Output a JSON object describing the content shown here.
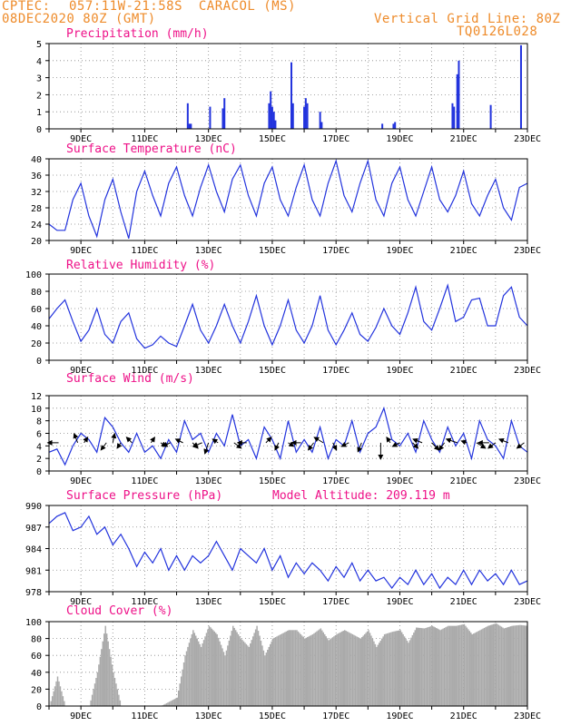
{
  "header": {
    "source": "CPTEC:",
    "location": "057:11W-21:58S  CARACOL (MS)",
    "run": "08DEC2020 80Z (GMT)",
    "grid_note": "Vertical Grid Line: 80Z",
    "code": "TQ0126L028"
  },
  "colors": {
    "series": "#2233dd",
    "cloud": "#aaaaaa",
    "title": "#ee1188",
    "header": "#ee8b2a",
    "arrow": "#000000"
  },
  "x_axis": {
    "start_day": 8.0,
    "end_day": 23.0,
    "tick_labels": [
      {
        "day": 9,
        "label": "9DEC"
      },
      {
        "day": 11,
        "label": "11DEC"
      },
      {
        "day": 13,
        "label": "13DEC"
      },
      {
        "day": 15,
        "label": "15DEC"
      },
      {
        "day": 17,
        "label": "17DEC"
      },
      {
        "day": 19,
        "label": "19DEC"
      },
      {
        "day": 21,
        "label": "21DEC"
      },
      {
        "day": 23,
        "label": "23DEC"
      }
    ]
  },
  "chart_data": [
    {
      "id": "precipitation",
      "type": "bar",
      "title": "Precipitation (mm/h)",
      "ylim": [
        0,
        5
      ],
      "yticks": [
        "0",
        "1",
        "2",
        "3",
        "4",
        "5"
      ],
      "points": [
        {
          "day": 12.35,
          "value": 1.5
        },
        {
          "day": 12.4,
          "value": 0.3
        },
        {
          "day": 12.45,
          "value": 0.3
        },
        {
          "day": 13.05,
          "value": 1.3
        },
        {
          "day": 13.45,
          "value": 1.2
        },
        {
          "day": 13.5,
          "value": 1.8
        },
        {
          "day": 14.9,
          "value": 1.5
        },
        {
          "day": 14.95,
          "value": 2.2
        },
        {
          "day": 15.0,
          "value": 1.3
        },
        {
          "day": 15.05,
          "value": 1.0
        },
        {
          "day": 15.1,
          "value": 0.5
        },
        {
          "day": 15.6,
          "value": 3.9
        },
        {
          "day": 15.65,
          "value": 1.5
        },
        {
          "day": 16.0,
          "value": 1.3
        },
        {
          "day": 16.05,
          "value": 1.8
        },
        {
          "day": 16.1,
          "value": 1.5
        },
        {
          "day": 16.5,
          "value": 1.0
        },
        {
          "day": 16.55,
          "value": 0.4
        },
        {
          "day": 18.45,
          "value": 0.3
        },
        {
          "day": 18.8,
          "value": 0.3
        },
        {
          "day": 18.85,
          "value": 0.4
        },
        {
          "day": 20.65,
          "value": 1.5
        },
        {
          "day": 20.7,
          "value": 1.3
        },
        {
          "day": 20.8,
          "value": 3.2
        },
        {
          "day": 20.85,
          "value": 4.0
        },
        {
          "day": 21.85,
          "value": 1.4
        },
        {
          "day": 22.8,
          "value": 4.9
        }
      ]
    },
    {
      "id": "temperature",
      "type": "line",
      "title": "Surface Temperature (nC)",
      "ylim": [
        20,
        40
      ],
      "yticks": [
        "20",
        "24",
        "28",
        "32",
        "36",
        "40"
      ],
      "x": [
        8.0,
        8.25,
        8.5,
        8.75,
        9.0,
        9.25,
        9.5,
        9.75,
        10.0,
        10.25,
        10.5,
        10.75,
        11.0,
        11.25,
        11.5,
        11.75,
        12.0,
        12.25,
        12.5,
        12.75,
        13.0,
        13.25,
        13.5,
        13.75,
        14.0,
        14.25,
        14.5,
        14.75,
        15.0,
        15.25,
        15.5,
        15.75,
        16.0,
        16.25,
        16.5,
        16.75,
        17.0,
        17.25,
        17.5,
        17.75,
        18.0,
        18.25,
        18.5,
        18.75,
        19.0,
        19.25,
        19.5,
        19.75,
        20.0,
        20.25,
        20.5,
        20.75,
        21.0,
        21.25,
        21.5,
        21.75,
        22.0,
        22.25,
        22.5,
        22.75,
        23.0
      ],
      "values": [
        24,
        22.5,
        22.5,
        30,
        34,
        26,
        21,
        30,
        35,
        27,
        20.5,
        32,
        37,
        31,
        26,
        34,
        38,
        31,
        26,
        33,
        38.5,
        32,
        27,
        35,
        38.5,
        31,
        26,
        34,
        38,
        30,
        26,
        33,
        38.5,
        30,
        26,
        34,
        39.5,
        31,
        27,
        34,
        39.5,
        30,
        26,
        34,
        38,
        30,
        26,
        32,
        38,
        30,
        27,
        31,
        37,
        29,
        26,
        31,
        35,
        28,
        25,
        33,
        34
      ]
    },
    {
      "id": "humidity",
      "type": "line",
      "title": "Relative Humidity (%)",
      "ylim": [
        0,
        100
      ],
      "yticks": [
        "0",
        "20",
        "40",
        "60",
        "80",
        "100"
      ],
      "x": [
        8.0,
        8.25,
        8.5,
        8.75,
        9.0,
        9.25,
        9.5,
        9.75,
        10.0,
        10.25,
        10.5,
        10.75,
        11.0,
        11.25,
        11.5,
        11.75,
        12.0,
        12.25,
        12.5,
        12.75,
        13.0,
        13.25,
        13.5,
        13.75,
        14.0,
        14.25,
        14.5,
        14.75,
        15.0,
        15.25,
        15.5,
        15.75,
        16.0,
        16.25,
        16.5,
        16.75,
        17.0,
        17.25,
        17.5,
        17.75,
        18.0,
        18.25,
        18.5,
        18.75,
        19.0,
        19.25,
        19.5,
        19.75,
        20.0,
        20.25,
        20.5,
        20.75,
        21.0,
        21.25,
        21.5,
        21.75,
        22.0,
        22.25,
        22.5,
        22.75,
        23.0
      ],
      "values": [
        48,
        60,
        70,
        45,
        22,
        35,
        60,
        30,
        20,
        45,
        55,
        25,
        14,
        18,
        28,
        20,
        16,
        40,
        65,
        35,
        20,
        40,
        65,
        40,
        20,
        45,
        75,
        40,
        18,
        40,
        70,
        35,
        20,
        40,
        75,
        35,
        18,
        35,
        55,
        30,
        22,
        38,
        60,
        40,
        30,
        55,
        85,
        45,
        35,
        60,
        87,
        45,
        50,
        70,
        72,
        40,
        40,
        75,
        85,
        50,
        40
      ]
    },
    {
      "id": "wind",
      "type": "line",
      "title": "Surface Wind (m/s)",
      "ylim": [
        0,
        12
      ],
      "yticks": [
        "0",
        "2",
        "4",
        "6",
        "8",
        "10",
        "12"
      ],
      "x": [
        8.0,
        8.25,
        8.5,
        8.75,
        9.0,
        9.25,
        9.5,
        9.75,
        10.0,
        10.25,
        10.5,
        10.75,
        11.0,
        11.25,
        11.5,
        11.75,
        12.0,
        12.25,
        12.5,
        12.75,
        13.0,
        13.25,
        13.5,
        13.75,
        14.0,
        14.25,
        14.5,
        14.75,
        15.0,
        15.25,
        15.5,
        15.75,
        16.0,
        16.25,
        16.5,
        16.75,
        17.0,
        17.25,
        17.5,
        17.75,
        18.0,
        18.25,
        18.5,
        18.75,
        19.0,
        19.25,
        19.5,
        19.75,
        20.0,
        20.25,
        20.5,
        20.75,
        21.0,
        21.25,
        21.5,
        21.75,
        22.0,
        22.25,
        22.5,
        22.75,
        23.0
      ],
      "values": [
        3,
        3.5,
        1,
        4,
        6,
        5,
        3,
        8.5,
        7,
        4.5,
        3,
        6,
        3,
        4,
        2,
        5,
        3,
        8,
        5,
        6,
        3,
        6,
        4,
        9,
        4,
        5,
        2,
        7,
        5,
        2,
        8,
        3,
        5,
        3,
        7,
        2,
        5,
        4,
        8,
        3,
        6,
        7,
        10,
        5,
        4,
        6,
        3,
        8,
        5,
        3,
        7,
        4,
        6,
        2,
        8,
        5,
        4,
        2,
        8,
        4,
        3
      ]
    },
    {
      "id": "pressure",
      "type": "line",
      "title": "Surface Pressure (hPa)",
      "subtitle": "Model Altitude: 209.119 m",
      "ylim": [
        978,
        990
      ],
      "yticks": [
        "978",
        "981",
        "984",
        "987",
        "990"
      ],
      "x": [
        8.0,
        8.25,
        8.5,
        8.75,
        9.0,
        9.25,
        9.5,
        9.75,
        10.0,
        10.25,
        10.5,
        10.75,
        11.0,
        11.25,
        11.5,
        11.75,
        12.0,
        12.25,
        12.5,
        12.75,
        13.0,
        13.25,
        13.5,
        13.75,
        14.0,
        14.25,
        14.5,
        14.75,
        15.0,
        15.25,
        15.5,
        15.75,
        16.0,
        16.25,
        16.5,
        16.75,
        17.0,
        17.25,
        17.5,
        17.75,
        18.0,
        18.25,
        18.5,
        18.75,
        19.0,
        19.25,
        19.5,
        19.75,
        20.0,
        20.25,
        20.5,
        20.75,
        21.0,
        21.25,
        21.5,
        21.75,
        22.0,
        22.25,
        22.5,
        22.75,
        23.0
      ],
      "values": [
        987.5,
        988.5,
        989,
        986.5,
        987,
        988.5,
        986,
        987,
        984.5,
        986,
        984,
        981.5,
        983.5,
        982,
        984,
        981,
        983,
        981,
        983,
        982,
        983,
        985,
        983,
        981,
        984,
        983,
        982,
        984,
        981,
        983,
        980,
        982,
        980.5,
        982,
        981,
        979.5,
        981.5,
        980,
        982,
        979.5,
        981,
        979.5,
        980,
        978.5,
        980,
        979,
        981,
        979,
        980.5,
        978.5,
        980,
        979,
        981,
        979,
        981,
        979.5,
        980.5,
        979,
        981,
        979,
        979.5
      ]
    },
    {
      "id": "cloud_cover",
      "type": "area",
      "title": "Cloud Cover (%)",
      "ylim": [
        0,
        100
      ],
      "yticks": [
        "0",
        "20",
        "40",
        "60",
        "80",
        "100"
      ],
      "x": [
        8.0,
        8.25,
        8.5,
        8.75,
        9.0,
        9.25,
        9.5,
        9.75,
        10.0,
        10.25,
        10.5,
        10.75,
        11.0,
        11.25,
        11.5,
        11.75,
        12.0,
        12.25,
        12.5,
        12.75,
        13.0,
        13.25,
        13.5,
        13.75,
        14.0,
        14.25,
        14.5,
        14.75,
        15.0,
        15.25,
        15.5,
        15.75,
        16.0,
        16.25,
        16.5,
        16.75,
        17.0,
        17.25,
        17.5,
        17.75,
        18.0,
        18.25,
        18.5,
        18.75,
        19.0,
        19.25,
        19.5,
        19.75,
        20.0,
        20.25,
        20.5,
        20.75,
        21.0,
        21.25,
        21.5,
        21.75,
        22.0,
        22.25,
        22.5,
        22.75,
        23.0
      ],
      "values": [
        0,
        35,
        0,
        0,
        0,
        0,
        40,
        95,
        40,
        0,
        0,
        0,
        0,
        0,
        0,
        5,
        10,
        60,
        90,
        70,
        95,
        85,
        60,
        95,
        80,
        70,
        95,
        60,
        80,
        85,
        90,
        90,
        80,
        85,
        92,
        78,
        85,
        90,
        85,
        80,
        90,
        70,
        85,
        88,
        90,
        75,
        93,
        92,
        95,
        90,
        95,
        95,
        97,
        85,
        90,
        95,
        98,
        92,
        95,
        96,
        95
      ]
    }
  ],
  "wind_vectors": [
    {
      "day": 8.3,
      "u": -6,
      "v": 0
    },
    {
      "day": 8.9,
      "u": -2,
      "v": 5
    },
    {
      "day": 9.1,
      "u": 2,
      "v": 3
    },
    {
      "day": 9.8,
      "u": -3,
      "v": -4
    },
    {
      "day": 10.0,
      "u": 1,
      "v": 5
    },
    {
      "day": 10.25,
      "u": -2,
      "v": -3
    },
    {
      "day": 10.6,
      "u": -3,
      "v": 3
    },
    {
      "day": 11.2,
      "u": 2,
      "v": 3
    },
    {
      "day": 11.5,
      "u": 3,
      "v": -2
    },
    {
      "day": 11.8,
      "u": -4,
      "v": -2
    },
    {
      "day": 12.2,
      "u": -4,
      "v": 2
    },
    {
      "day": 12.5,
      "u": 3,
      "v": -3
    },
    {
      "day": 12.8,
      "u": -5,
      "v": -2
    },
    {
      "day": 13.0,
      "u": -2,
      "v": -6
    },
    {
      "day": 13.3,
      "u": -3,
      "v": 2
    },
    {
      "day": 13.8,
      "u": 4,
      "v": -3
    },
    {
      "day": 14.2,
      "u": -5,
      "v": 0
    },
    {
      "day": 14.8,
      "u": 3,
      "v": 3
    },
    {
      "day": 15.2,
      "u": -2,
      "v": -4
    },
    {
      "day": 15.5,
      "u": 3,
      "v": -2
    },
    {
      "day": 15.9,
      "u": -5,
      "v": 0
    },
    {
      "day": 16.3,
      "u": -3,
      "v": -4
    },
    {
      "day": 16.6,
      "u": -5,
      "v": 3
    },
    {
      "day": 16.9,
      "u": 2,
      "v": -4
    },
    {
      "day": 17.4,
      "u": -4,
      "v": -2
    },
    {
      "day": 17.8,
      "u": -2,
      "v": -5
    },
    {
      "day": 18.4,
      "u": 0,
      "v": -9
    },
    {
      "day": 18.7,
      "u": -2,
      "v": 3
    },
    {
      "day": 19.0,
      "u": -4,
      "v": -2
    },
    {
      "day": 19.4,
      "u": 3,
      "v": -3
    },
    {
      "day": 19.7,
      "u": -5,
      "v": 2
    },
    {
      "day": 20.0,
      "u": 4,
      "v": -4
    },
    {
      "day": 20.4,
      "u": -3,
      "v": -4
    },
    {
      "day": 20.8,
      "u": -6,
      "v": 2
    },
    {
      "day": 21.1,
      "u": -3,
      "v": 1
    },
    {
      "day": 21.4,
      "u": 5,
      "v": -3
    },
    {
      "day": 21.8,
      "u": -6,
      "v": 0
    },
    {
      "day": 22.0,
      "u": -4,
      "v": -3
    },
    {
      "day": 22.4,
      "u": -5,
      "v": 2
    },
    {
      "day": 22.9,
      "u": -4,
      "v": -3
    }
  ]
}
